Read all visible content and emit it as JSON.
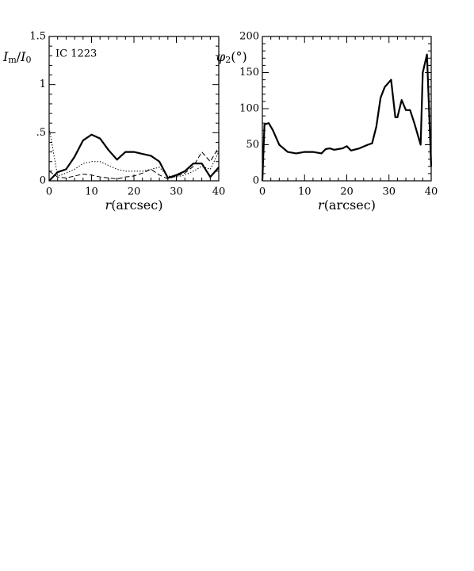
{
  "chart_data": [
    {
      "type": "line",
      "ylabel": [
        "I",
        "m",
        "/",
        "I",
        "0"
      ],
      "xlabel": [
        "r",
        "(arcsec)"
      ],
      "annotation": "IC 1223",
      "xlim": [
        0,
        40
      ],
      "xticks": [
        0,
        10,
        20,
        30,
        40
      ],
      "ylim": [
        0,
        1.5
      ],
      "yticks": [
        0,
        {
          "value": 0.5,
          "label": ".5"
        },
        1,
        1.5
      ],
      "x": [
        0,
        2,
        4,
        6,
        8,
        10,
        12,
        14,
        16,
        18,
        20,
        22,
        24,
        26,
        28,
        30,
        32,
        34,
        36,
        38,
        40
      ],
      "series": [
        {
          "color": "#000000",
          "style": "solid",
          "width": 2.2,
          "values": [
            0,
            0.09,
            0.12,
            0.25,
            0.42,
            0.48,
            0.44,
            0.32,
            0.22,
            0.3,
            0.3,
            0.28,
            0.26,
            0.2,
            0.03,
            0.06,
            0.1,
            0.18,
            0.18,
            0.04,
            0.14
          ]
        },
        {
          "color": "#000000",
          "style": "dotted",
          "width": 1,
          "values": [
            0.55,
            0.05,
            0.08,
            0.12,
            0.18,
            0.2,
            0.2,
            0.16,
            0.12,
            0.1,
            0.1,
            0.1,
            0.12,
            0.14,
            0.05,
            0.04,
            0.06,
            0.1,
            0.15,
            0.12,
            0.3
          ]
        },
        {
          "color": "#000000",
          "style": "dashed",
          "width": 1,
          "values": [
            0.1,
            0.04,
            0.03,
            0.05,
            0.07,
            0.06,
            0.04,
            0.03,
            0.02,
            0.04,
            0.05,
            0.08,
            0.12,
            0.06,
            0.02,
            0.05,
            0.08,
            0.15,
            0.3,
            0.2,
            0.35
          ]
        }
      ]
    },
    {
      "type": "line",
      "ylabel": [
        "φ",
        "2",
        "(°)"
      ],
      "xlabel": [
        "r",
        "(arcsec)"
      ],
      "xlim": [
        0,
        40
      ],
      "xticks": [
        0,
        10,
        20,
        30,
        40
      ],
      "ylim": [
        0,
        200
      ],
      "yticks": [
        0,
        50,
        100,
        150,
        200
      ],
      "x": [
        0,
        0.5,
        1.5,
        2.5,
        4,
        6,
        8,
        10,
        12,
        14,
        15,
        16,
        17,
        19,
        20,
        21,
        23,
        25,
        26,
        27,
        28,
        29,
        30.5,
        31.5,
        32,
        33,
        34,
        35,
        36,
        37,
        37.5,
        38,
        39,
        40
      ],
      "series": [
        {
          "color": "#000000",
          "style": "solid",
          "width": 2.2,
          "values": [
            0,
            78,
            80,
            70,
            50,
            40,
            38,
            40,
            40,
            38,
            44,
            45,
            43,
            45,
            48,
            42,
            45,
            50,
            52,
            75,
            115,
            130,
            140,
            88,
            88,
            112,
            98,
            98,
            80,
            60,
            50,
            150,
            175,
            20
          ]
        }
      ]
    }
  ]
}
